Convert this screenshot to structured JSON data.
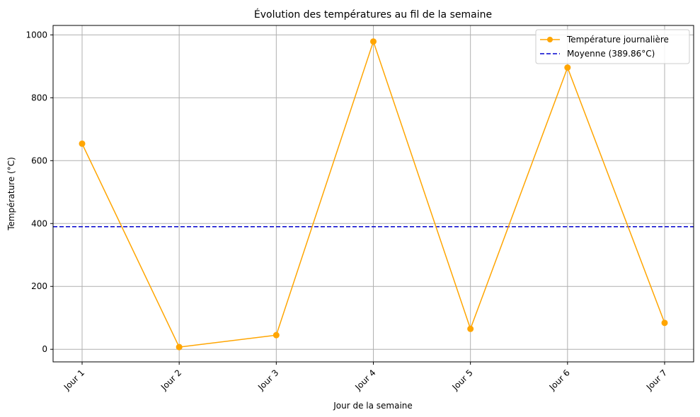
{
  "chart_data": {
    "type": "line",
    "title": "Évolution des températures au fil de la semaine",
    "xlabel": "Jour de la semaine",
    "ylabel": "Température (°C)",
    "categories": [
      "Jour 1",
      "Jour 2",
      "Jour 3",
      "Jour 4",
      "Jour 5",
      "Jour 6",
      "Jour 7"
    ],
    "series": [
      {
        "name": "Température journalière",
        "values": [
          654,
          7,
          45,
          979,
          65,
          896,
          84
        ],
        "color": "#ffa500",
        "marker": "circle"
      }
    ],
    "mean_line": {
      "label": "Moyenne (389.86°C)",
      "value": 389.86,
      "color": "#0000cd",
      "style": "dashed"
    },
    "ylim": [
      -40,
      1030
    ],
    "yticks": [
      0,
      200,
      400,
      600,
      800,
      1000
    ],
    "grid": true,
    "legend_position": "top-right",
    "xtick_rotation": 45
  }
}
